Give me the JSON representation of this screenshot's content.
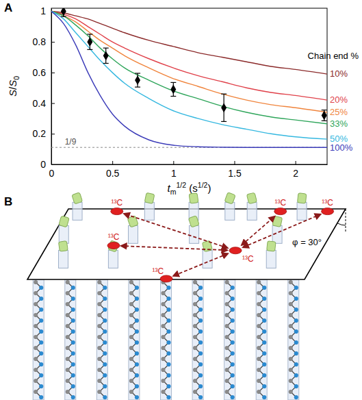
{
  "chart_data": {
    "type": "line",
    "panel_label": "A",
    "x_label": [
      "t",
      "m",
      "1/2",
      " (s",
      "1/2",
      ")"
    ],
    "y_label": [
      "S",
      "/",
      "S",
      "0"
    ],
    "x": [
      0,
      0.1,
      0.2,
      0.3,
      0.4,
      0.5,
      0.6,
      0.8,
      1.0,
      1.2,
      1.4,
      1.6,
      1.8,
      2.0,
      2.26
    ],
    "xlim": [
      0,
      2.26
    ],
    "xticks": [
      0,
      0.5,
      1,
      1.5,
      2
    ],
    "ylim": [
      0,
      1.02
    ],
    "yticks": [
      0,
      0.2,
      0.4,
      0.6,
      0.8,
      1
    ],
    "legend": "right",
    "legend_title": "Chain end %",
    "reference_line": {
      "value": 0.111,
      "label": "1/9"
    },
    "series": [
      {
        "name": "10%",
        "type": "line",
        "color": "#8b2a2a",
        "values": [
          1,
          0.99,
          0.97,
          0.95,
          0.92,
          0.89,
          0.86,
          0.81,
          0.77,
          0.73,
          0.7,
          0.67,
          0.64,
          0.62,
          0.59
        ]
      },
      {
        "name": "20%",
        "type": "line",
        "color": "#e0414a",
        "values": [
          1,
          0.98,
          0.95,
          0.9,
          0.85,
          0.8,
          0.76,
          0.69,
          0.63,
          0.58,
          0.54,
          0.5,
          0.47,
          0.45,
          0.42
        ]
      },
      {
        "name": "25%",
        "type": "line",
        "color": "#f0843c",
        "values": [
          1,
          0.97,
          0.93,
          0.87,
          0.81,
          0.76,
          0.71,
          0.63,
          0.56,
          0.51,
          0.46,
          0.42,
          0.39,
          0.37,
          0.34
        ]
      },
      {
        "name": "33%",
        "type": "line",
        "color": "#2ea55a",
        "values": [
          1,
          0.97,
          0.91,
          0.84,
          0.76,
          0.69,
          0.63,
          0.55,
          0.48,
          0.43,
          0.38,
          0.34,
          0.31,
          0.29,
          0.265
        ]
      },
      {
        "name": "50%",
        "type": "line",
        "color": "#35b8e0",
        "values": [
          1,
          0.95,
          0.86,
          0.77,
          0.68,
          0.6,
          0.53,
          0.43,
          0.35,
          0.3,
          0.26,
          0.23,
          0.2,
          0.18,
          0.165
        ]
      },
      {
        "name": "100%",
        "type": "line",
        "color": "#3a3ab8",
        "values": [
          1,
          0.92,
          0.78,
          0.6,
          0.45,
          0.33,
          0.25,
          0.16,
          0.125,
          0.115,
          0.112,
          0.111,
          0.111,
          0.111,
          0.111
        ]
      },
      {
        "type": "scatter",
        "marker": "diamond",
        "color": "#000000",
        "x": [
          0.1,
          0.316,
          0.447,
          0.707,
          1,
          1.414,
          2.236
        ],
        "values": [
          1.0,
          0.8,
          0.71,
          0.55,
          0.49,
          0.37,
          0.32
        ],
        "errors": [
          0.035,
          0.05,
          0.05,
          0.045,
          0.045,
          0.09,
          0.035
        ]
      }
    ]
  },
  "diagram": {
    "panel_label": "B",
    "labels": [
      "¹³C",
      "¹³C",
      "¹³C",
      "¹³C",
      "¹³C",
      "¹³C"
    ],
    "angle_label": "φ = 30°"
  }
}
